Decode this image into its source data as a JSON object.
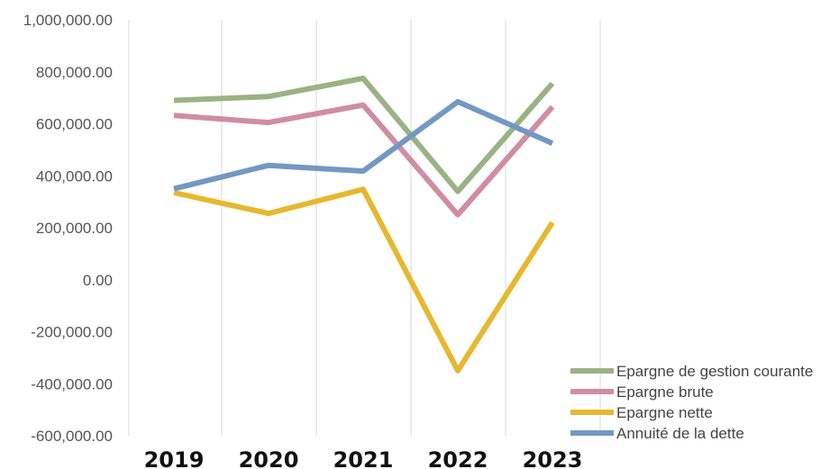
{
  "chart_data": {
    "type": "line",
    "x": [
      "2019",
      "2020",
      "2021",
      "2022",
      "2023"
    ],
    "ylim": [
      -600000,
      1000000
    ],
    "ytick_step": 200000,
    "ytick_labels": [
      "-600,000.00",
      "-400,000.00",
      "-200,000.00",
      "0.00",
      "200,000.00",
      "400,000.00",
      "600,000.00",
      "800,000.00",
      "1,000,000.00"
    ],
    "grid": "vertical",
    "legend_position": "bottom-right",
    "series": [
      {
        "name": "Epargne de gestion courante",
        "color": "#9BB284",
        "values": [
          690000,
          705000,
          775000,
          340000,
          755000
        ]
      },
      {
        "name": "Epargne brute",
        "color": "#D08DA1",
        "values": [
          632000,
          605000,
          672000,
          250000,
          665000
        ]
      },
      {
        "name": "Epargne nette",
        "color": "#E6B82E",
        "values": [
          335000,
          255000,
          348000,
          -350000,
          220000
        ]
      },
      {
        "name": "Annuité de la dette",
        "color": "#7298C3",
        "values": [
          350000,
          440000,
          418000,
          685000,
          525000
        ]
      }
    ]
  }
}
